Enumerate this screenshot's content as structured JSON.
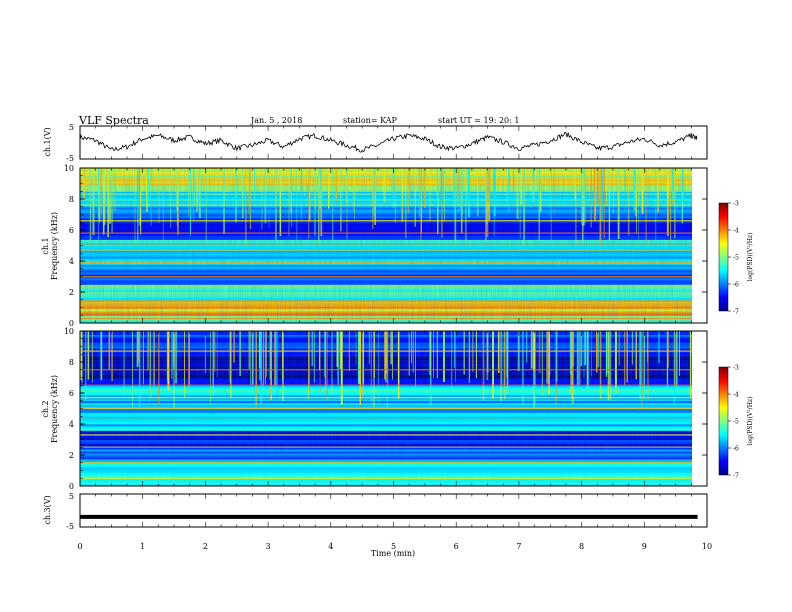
{
  "header": {
    "title": "VLF Spectra",
    "date": "Jan. 5 , 2018",
    "station": "station= KAP",
    "start": "start UT =  19: 20: 1"
  },
  "chart_data": [
    {
      "type": "line",
      "panel": "ch1-waveform",
      "ylabel": "ch.1(V)",
      "ylim": [
        -5,
        5
      ],
      "yticks": [
        "5",
        "-5"
      ],
      "xlim": [
        0,
        10
      ],
      "x": [
        0,
        0.25,
        0.5,
        0.75,
        1.0,
        1.25,
        1.5,
        1.75,
        2.0,
        2.25,
        2.5,
        2.75,
        3.0,
        3.25,
        3.5,
        3.75,
        4.0,
        4.25,
        4.5,
        4.75,
        5.0,
        5.25,
        5.5,
        5.75,
        6.0,
        6.25,
        6.5,
        6.75,
        7.0,
        7.25,
        7.5,
        7.75,
        8.0,
        8.25,
        8.5,
        8.75,
        9.0,
        9.25,
        9.5,
        9.75,
        9.85
      ],
      "y": [
        1.5,
        0.5,
        -2.5,
        -1.5,
        1.0,
        2.0,
        0.5,
        1.5,
        -0.5,
        0.5,
        -2.0,
        -1.0,
        0.5,
        -1.5,
        1.0,
        2.0,
        0.5,
        -1.0,
        -2.5,
        -1.0,
        1.0,
        2.0,
        1.0,
        -1.5,
        -2.0,
        -0.5,
        1.5,
        0.0,
        -2.0,
        -1.0,
        0.5,
        2.5,
        0.0,
        -2.0,
        -1.5,
        0.0,
        1.0,
        -1.0,
        0.0,
        2.0,
        1.0
      ]
    },
    {
      "type": "heatmap",
      "panel": "ch1-spectrogram",
      "ylabel": "ch.1\nFrequency (kHz)",
      "ylim": [
        0,
        10
      ],
      "yticks": [
        "0",
        "2",
        "4",
        "6",
        "8",
        "10"
      ],
      "xlim": [
        0,
        10
      ],
      "colorbar": {
        "label": "log(PSD)(V²/Hz)",
        "range": [
          -7,
          -3
        ],
        "ticks": [
          "-3",
          "-4",
          "-5",
          "-6",
          "-7"
        ]
      },
      "bands": [
        [
          0,
          0.5,
          -5.0
        ],
        [
          0.5,
          1.5,
          -4.3
        ],
        [
          1.5,
          2.5,
          -5.2
        ],
        [
          2.5,
          3.5,
          -6.3
        ],
        [
          3.5,
          4.8,
          -5.6
        ],
        [
          4.8,
          5.4,
          -5.3
        ],
        [
          5.4,
          6.5,
          -6.6
        ],
        [
          6.5,
          7.5,
          -6.1
        ],
        [
          7.5,
          8.5,
          -5.4
        ],
        [
          8.5,
          10,
          -4.6
        ]
      ],
      "lines_khz": [
        0.3,
        1.0,
        2.3,
        3.0,
        3.9,
        4.7,
        5.1,
        5.8,
        6.6,
        7.6
      ]
    },
    {
      "type": "heatmap",
      "panel": "ch2-spectrogram",
      "ylabel": "ch.2\nFrequency (kHz)",
      "ylim": [
        0,
        10
      ],
      "yticks": [
        "0",
        "2",
        "4",
        "6",
        "8",
        "10"
      ],
      "xlim": [
        0,
        10
      ],
      "colorbar": {
        "label": "log(PSD)(V²/Hz)",
        "range": [
          -7,
          -3
        ],
        "ticks": [
          "-3",
          "-4",
          "-5",
          "-6",
          "-7"
        ]
      },
      "bands": [
        [
          0,
          0.6,
          -5.3
        ],
        [
          0.6,
          1.6,
          -5.5
        ],
        [
          1.6,
          2.6,
          -6.0
        ],
        [
          2.6,
          3.6,
          -6.5
        ],
        [
          3.6,
          4.6,
          -5.7
        ],
        [
          4.6,
          5.6,
          -5.9
        ],
        [
          5.6,
          6.5,
          -5.6
        ],
        [
          6.5,
          8.5,
          -6.7
        ],
        [
          8.5,
          10,
          -6.3
        ]
      ],
      "lines_khz": [
        0.5,
        1.5,
        2.5,
        3.3,
        4.3,
        5.0,
        5.7,
        6.5,
        7.5,
        8.7
      ]
    },
    {
      "type": "line",
      "panel": "ch3-waveform",
      "ylabel": "ch.3(V)",
      "ylim": [
        -5,
        5
      ],
      "yticks": [
        "5",
        "-5"
      ],
      "xlim": [
        0,
        10
      ],
      "x": [
        0,
        9.85
      ],
      "y": [
        -2.0,
        -2.0
      ]
    }
  ],
  "xaxis": {
    "label": "Time (min)",
    "ticks": [
      "0",
      "1",
      "2",
      "3",
      "4",
      "5",
      "6",
      "7",
      "8",
      "9",
      "10"
    ]
  },
  "colors": {
    "axes": "#000000",
    "jet_low": "#00008f",
    "jet_high": "#800000"
  }
}
